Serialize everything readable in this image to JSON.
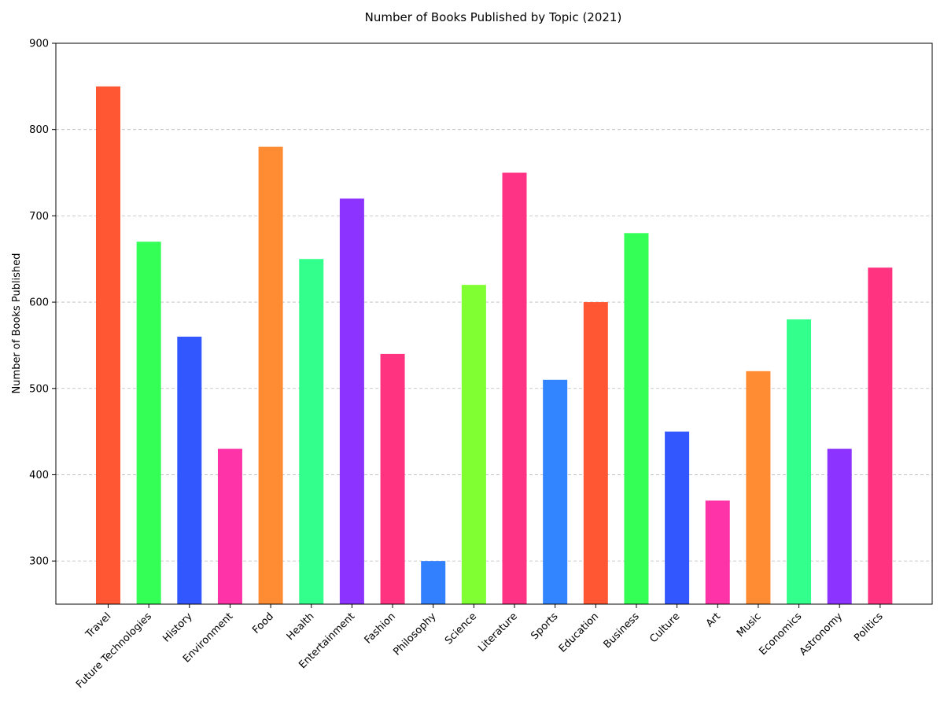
{
  "chart_data": {
    "type": "bar",
    "title": "Number of Books Published by Topic (2021)",
    "xlabel": "",
    "ylabel": "Number of Books Published",
    "ylim": [
      250,
      900
    ],
    "yticks": [
      300,
      400,
      500,
      600,
      700,
      800,
      900
    ],
    "grid": "y-dashed",
    "categories": [
      "Travel",
      "Future Technologies",
      "History",
      "Environment",
      "Food",
      "Health",
      "Entertainment",
      "Fashion",
      "Philosophy",
      "Science",
      "Literature",
      "Sports",
      "Education",
      "Business",
      "Culture",
      "Art",
      "Music",
      "Economics",
      "Astronomy",
      "Politics"
    ],
    "values": [
      850,
      670,
      560,
      430,
      780,
      650,
      720,
      540,
      300,
      620,
      750,
      510,
      600,
      680,
      450,
      370,
      520,
      580,
      430,
      640
    ],
    "colors": [
      "#FF5733",
      "#33FF57",
      "#3357FF",
      "#FF33A8",
      "#FF8C33",
      "#33FF8C",
      "#8C33FF",
      "#FF3380",
      "#3380FF",
      "#80FF33",
      "#FF3385",
      "#3385FF",
      "#FF5733",
      "#33FF57",
      "#3357FF",
      "#FF33A8",
      "#FF8C33",
      "#33FF8C",
      "#8C33FF",
      "#FF3380"
    ]
  }
}
